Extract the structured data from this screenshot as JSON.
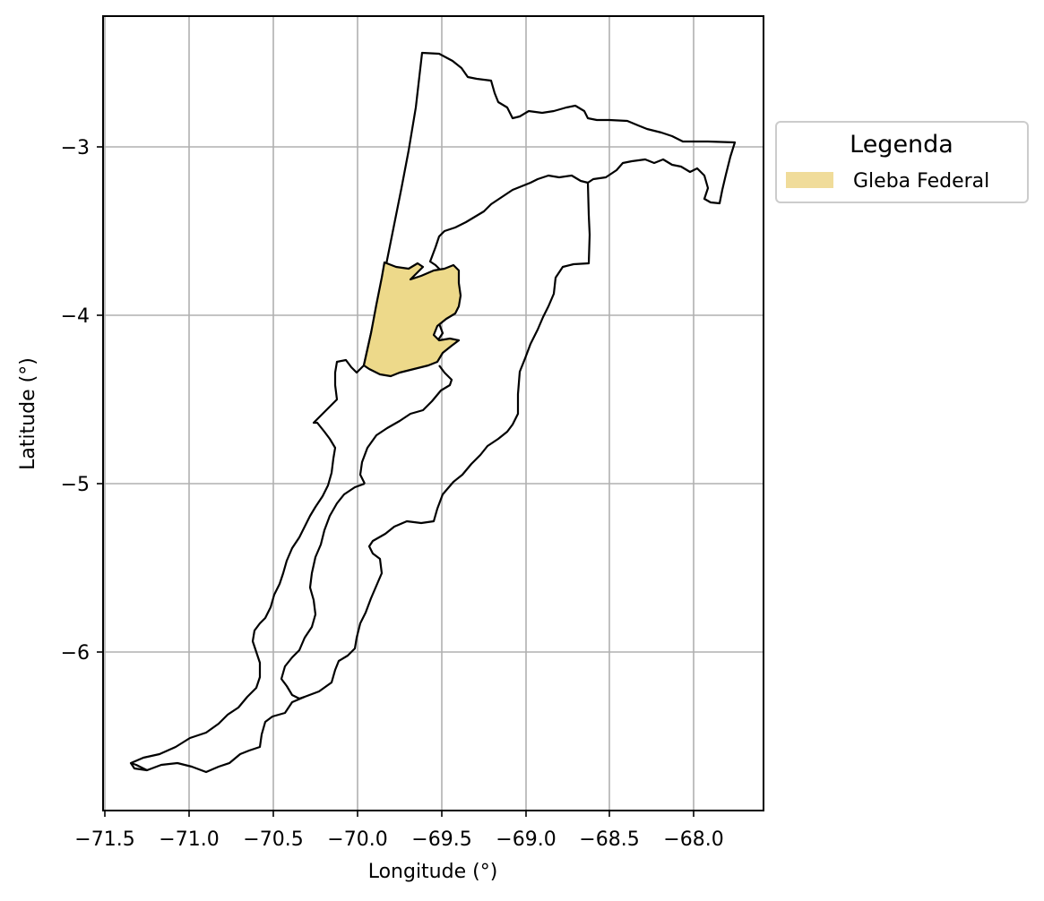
{
  "map": {
    "xlabel": "Longitude (°)",
    "ylabel": "Latitude (°)",
    "x_ticks": [
      "−71.5",
      "−71.0",
      "−70.5",
      "−70.0",
      "−69.5",
      "−69.0",
      "−68.5",
      "−68.0"
    ],
    "y_ticks": [
      "−3",
      "−4",
      "−5",
      "−6"
    ],
    "grid": true,
    "legend": {
      "title": "Legenda",
      "placement": "outside-right-top",
      "entries": [
        {
          "label": "Gleba Federal",
          "color": "#f0dc9a"
        }
      ]
    },
    "colors": {
      "highlight_fill": "#edd98a",
      "outline": "#000000",
      "grid": "#b0b0b0"
    }
  }
}
